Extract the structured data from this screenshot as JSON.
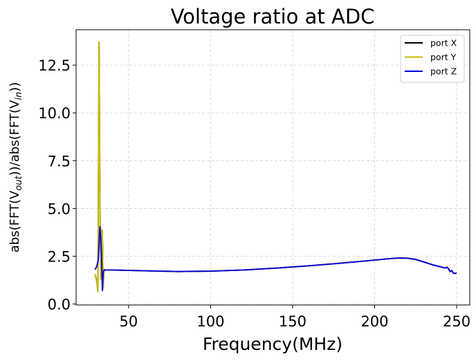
{
  "chart_data": {
    "type": "line",
    "title": "Voltage ratio at ADC",
    "xlabel": "Frequency(MHz)",
    "ylabel": {
      "base": "abs(FFT(V",
      "sub_out": "out",
      "middle": "))/abs(FFT(V",
      "sub_in": "in",
      "end": "))"
    },
    "xlim": [
      18,
      258
    ],
    "ylim": [
      -0.05,
      14.35
    ],
    "xticks": [
      "50",
      "100",
      "150",
      "200",
      "250"
    ],
    "yticks": [
      "0.0",
      "2.5",
      "5.0",
      "7.5",
      "10.0",
      "12.5"
    ],
    "grid": true,
    "grid_style": "dashed",
    "legend_position": "top-right",
    "series": [
      {
        "name": "port X",
        "color": "#000000",
        "x": [
          29.5,
          30.5,
          31.3,
          32.0,
          32.5,
          33.0,
          33.5,
          34.0,
          34.5,
          35.0,
          35.5,
          36.0,
          40,
          60,
          80,
          100,
          120,
          140,
          160,
          180,
          200,
          210,
          215,
          220,
          225,
          230,
          235,
          240,
          243,
          244,
          245,
          246,
          247,
          248,
          249,
          250
        ],
        "y": [
          1.55,
          1.25,
          0.65,
          13.7,
          6.0,
          1.3,
          3.9,
          3.8,
          0.8,
          1.8,
          1.8,
          1.78,
          1.78,
          1.74,
          1.7,
          1.72,
          1.78,
          1.88,
          2.0,
          2.14,
          2.3,
          2.38,
          2.41,
          2.4,
          2.33,
          2.2,
          2.06,
          1.95,
          1.88,
          1.93,
          1.85,
          1.7,
          1.75,
          1.62,
          1.6,
          1.62
        ]
      },
      {
        "name": "port Y",
        "color": "#c8bc00",
        "x": [
          29.5,
          30.5,
          31.3,
          32.0,
          32.5,
          33.0,
          33.5,
          34.0,
          34.5,
          35.0,
          35.5,
          36.0,
          40,
          60,
          80,
          100,
          120,
          140,
          160,
          180,
          200,
          210,
          215,
          220,
          225,
          230,
          235,
          240,
          243,
          244,
          245,
          246,
          247,
          248,
          249,
          250
        ],
        "y": [
          1.55,
          1.25,
          0.65,
          13.7,
          6.0,
          1.3,
          3.9,
          3.8,
          0.8,
          1.8,
          1.8,
          1.78,
          1.78,
          1.74,
          1.7,
          1.72,
          1.78,
          1.88,
          2.0,
          2.14,
          2.3,
          2.38,
          2.41,
          2.4,
          2.33,
          2.2,
          2.06,
          1.95,
          1.88,
          1.93,
          1.85,
          1.7,
          1.75,
          1.62,
          1.6,
          1.62
        ]
      },
      {
        "name": "port Z",
        "color": "#0000dd",
        "x": [
          29.5,
          30.5,
          31.5,
          32.5,
          33.0,
          33.5,
          34.0,
          34.5,
          35.0,
          35.5,
          36.0,
          40,
          60,
          80,
          100,
          120,
          140,
          160,
          180,
          200,
          210,
          215,
          220,
          225,
          230,
          235,
          240,
          243,
          244,
          245,
          246,
          247,
          248,
          249,
          250
        ],
        "y": [
          1.8,
          1.95,
          2.3,
          4.05,
          3.5,
          2.6,
          0.7,
          1.6,
          1.78,
          1.78,
          1.78,
          1.78,
          1.74,
          1.7,
          1.72,
          1.78,
          1.88,
          2.0,
          2.14,
          2.3,
          2.38,
          2.41,
          2.4,
          2.33,
          2.2,
          2.06,
          1.95,
          1.88,
          1.93,
          1.85,
          1.7,
          1.75,
          1.62,
          1.6,
          1.62
        ]
      }
    ]
  }
}
